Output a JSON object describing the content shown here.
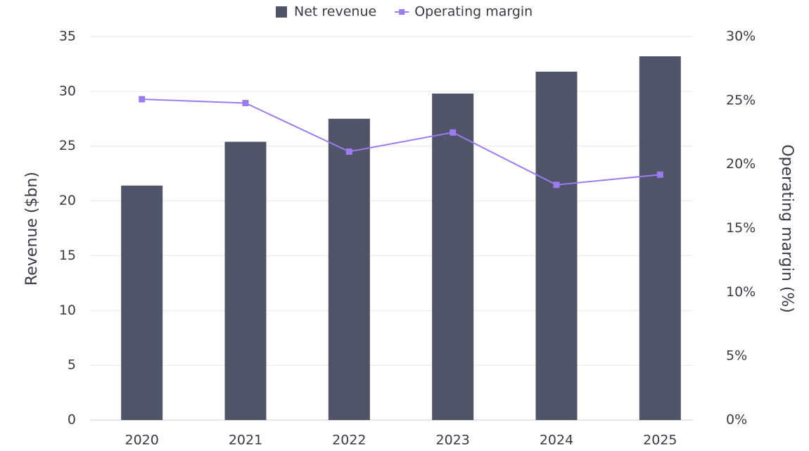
{
  "chart_data": {
    "type": "bar",
    "categories": [
      "2020",
      "2021",
      "2022",
      "2023",
      "2024",
      "2025"
    ],
    "series": [
      {
        "name": "Net revenue",
        "type": "bar",
        "color": "#505469",
        "values": [
          21.4,
          25.4,
          27.5,
          29.8,
          31.8,
          33.2
        ]
      },
      {
        "name": "Operating margin",
        "type": "line",
        "axis": "y2",
        "color": "#9b7cf0",
        "values": [
          25.1,
          24.8,
          21.0,
          22.5,
          18.4,
          19.2
        ]
      }
    ],
    "ylabel": "Revenue ($bn)",
    "y2label": "Operating margin (%)",
    "ylim": [
      0,
      35
    ],
    "yticks": [
      0,
      5,
      10,
      15,
      20,
      25,
      30,
      35
    ],
    "y2lim": [
      0,
      30
    ],
    "y2ticks": [
      {
        "value": 0,
        "label": "0%"
      },
      {
        "value": 5,
        "label": "5%"
      },
      {
        "value": 10,
        "label": "10%"
      },
      {
        "value": 15,
        "label": "15%"
      },
      {
        "value": 20,
        "label": "20%"
      },
      {
        "value": 25,
        "label": "25%"
      },
      {
        "value": 30,
        "label": "30%"
      }
    ],
    "grid": true,
    "legend": "top"
  }
}
